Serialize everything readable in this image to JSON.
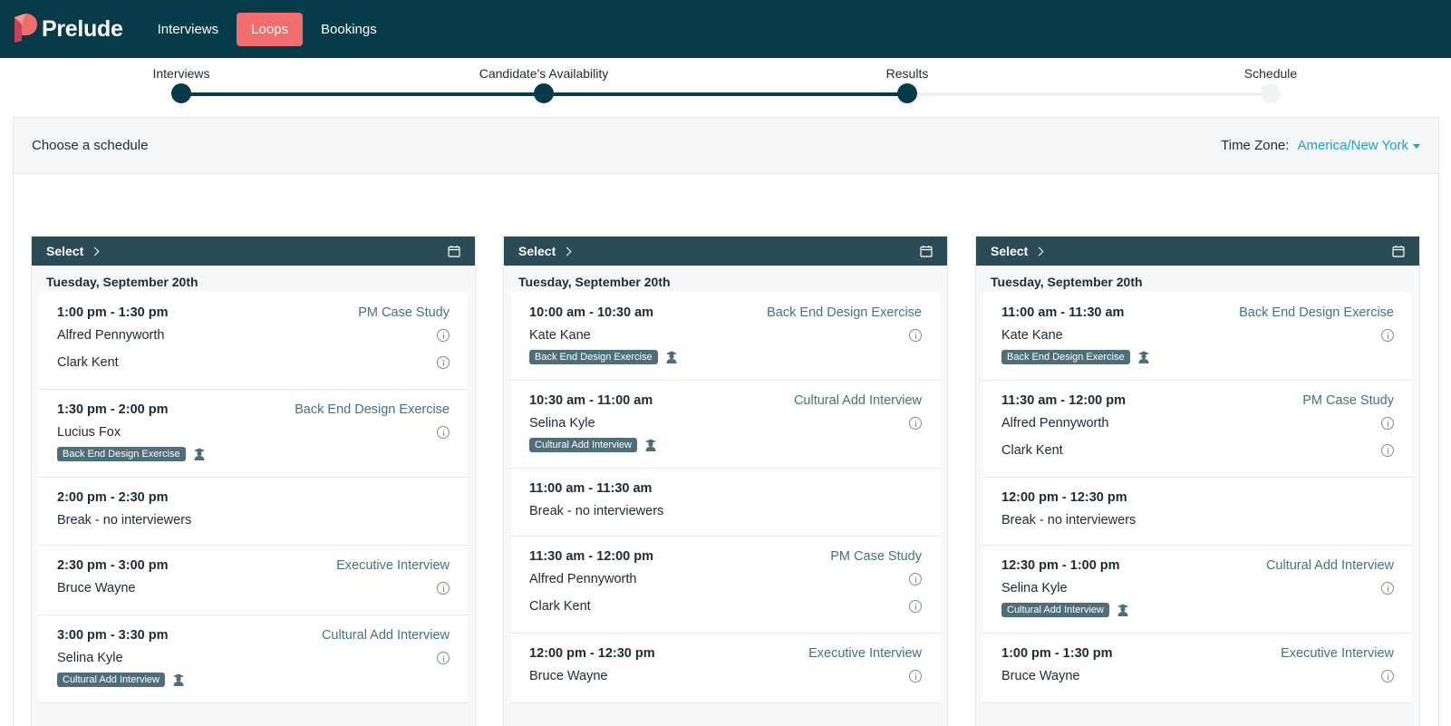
{
  "nav": {
    "brand": "Prelude",
    "links": [
      "Interviews",
      "Loops",
      "Bookings"
    ],
    "active": "Loops"
  },
  "stepper": {
    "steps": [
      {
        "label": "Interviews",
        "complete": true
      },
      {
        "label": "Candidate's Availability",
        "complete": true
      },
      {
        "label": "Results",
        "complete": true
      },
      {
        "label": "Schedule",
        "complete": false
      }
    ]
  },
  "panel": {
    "title": "Choose a schedule",
    "timezone_label": "Time Zone:",
    "timezone_value": "America/New York"
  },
  "colors": {
    "nav_bg": "#063b4a",
    "active_tab": "#f26d6d",
    "accent_link": "#1aa3cc",
    "column_header": "#2b4b57"
  },
  "schedules": [
    {
      "select_label": "Select",
      "day": "Tuesday, September 20th",
      "slots": [
        {
          "time": "1:00 pm - 1:30 pm",
          "type": "PM Case Study",
          "people": [
            "Alfred Pennyworth",
            "Clark Kent"
          ],
          "tag": ""
        },
        {
          "time": "1:30 pm - 2:00 pm",
          "type": "Back End Design Exercise",
          "people": [
            "Lucius Fox"
          ],
          "tag": "Back End Design Exercise"
        },
        {
          "time": "2:00 pm - 2:30 pm",
          "type": "",
          "people": [],
          "break": "Break - no interviewers",
          "tag": ""
        },
        {
          "time": "2:30 pm - 3:00 pm",
          "type": "Executive Interview",
          "people": [
            "Bruce Wayne"
          ],
          "tag": ""
        },
        {
          "time": "3:00 pm - 3:30 pm",
          "type": "Cultural Add Interview",
          "people": [
            "Selina Kyle"
          ],
          "tag": "Cultural Add Interview"
        }
      ]
    },
    {
      "select_label": "Select",
      "day": "Tuesday, September 20th",
      "slots": [
        {
          "time": "10:00 am - 10:30 am",
          "type": "Back End Design Exercise",
          "people": [
            "Kate Kane"
          ],
          "tag": "Back End Design Exercise"
        },
        {
          "time": "10:30 am - 11:00 am",
          "type": "Cultural Add Interview",
          "people": [
            "Selina Kyle"
          ],
          "tag": "Cultural Add Interview"
        },
        {
          "time": "11:00 am - 11:30 am",
          "type": "",
          "people": [],
          "break": "Break - no interviewers",
          "tag": ""
        },
        {
          "time": "11:30 am - 12:00 pm",
          "type": "PM Case Study",
          "people": [
            "Alfred Pennyworth",
            "Clark Kent"
          ],
          "tag": ""
        },
        {
          "time": "12:00 pm - 12:30 pm",
          "type": "Executive Interview",
          "people": [
            "Bruce Wayne"
          ],
          "tag": ""
        }
      ]
    },
    {
      "select_label": "Select",
      "day": "Tuesday, September 20th",
      "slots": [
        {
          "time": "11:00 am - 11:30 am",
          "type": "Back End Design Exercise",
          "people": [
            "Kate Kane"
          ],
          "tag": "Back End Design Exercise"
        },
        {
          "time": "11:30 am - 12:00 pm",
          "type": "PM Case Study",
          "people": [
            "Alfred Pennyworth",
            "Clark Kent"
          ],
          "tag": ""
        },
        {
          "time": "12:00 pm - 12:30 pm",
          "type": "",
          "people": [],
          "break": "Break - no interviewers",
          "tag": ""
        },
        {
          "time": "12:30 pm - 1:00 pm",
          "type": "Cultural Add Interview",
          "people": [
            "Selina Kyle"
          ],
          "tag": "Cultural Add Interview"
        },
        {
          "time": "1:00 pm - 1:30 pm",
          "type": "Executive Interview",
          "people": [
            "Bruce Wayne"
          ],
          "tag": ""
        }
      ]
    }
  ]
}
